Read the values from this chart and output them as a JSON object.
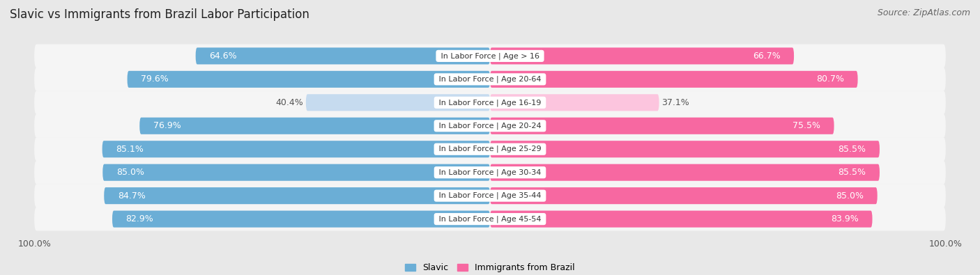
{
  "title": "Slavic vs Immigrants from Brazil Labor Participation",
  "source": "Source: ZipAtlas.com",
  "categories": [
    "In Labor Force | Age > 16",
    "In Labor Force | Age 20-64",
    "In Labor Force | Age 16-19",
    "In Labor Force | Age 20-24",
    "In Labor Force | Age 25-29",
    "In Labor Force | Age 30-34",
    "In Labor Force | Age 35-44",
    "In Labor Force | Age 45-54"
  ],
  "slavic_values": [
    64.6,
    79.6,
    40.4,
    76.9,
    85.1,
    85.0,
    84.7,
    82.9
  ],
  "brazil_values": [
    66.7,
    80.7,
    37.1,
    75.5,
    85.5,
    85.5,
    85.0,
    83.9
  ],
  "slavic_color": "#6baed6",
  "slavic_color_light": "#c6dbef",
  "brazil_color": "#f768a1",
  "brazil_color_light": "#fcc5de",
  "bg_color": "#e8e8e8",
  "row_bg_color": "#f5f5f5",
  "row_bg_color2": "#ebebeb",
  "label_color_white": "#ffffff",
  "label_color_dark": "#555555",
  "legend_slavic": "Slavic",
  "legend_brazil": "Immigrants from Brazil",
  "max_val": 100.0,
  "title_fontsize": 12,
  "source_fontsize": 9,
  "bar_label_fontsize": 9,
  "category_fontsize": 8,
  "bottom_label": "100.0%"
}
